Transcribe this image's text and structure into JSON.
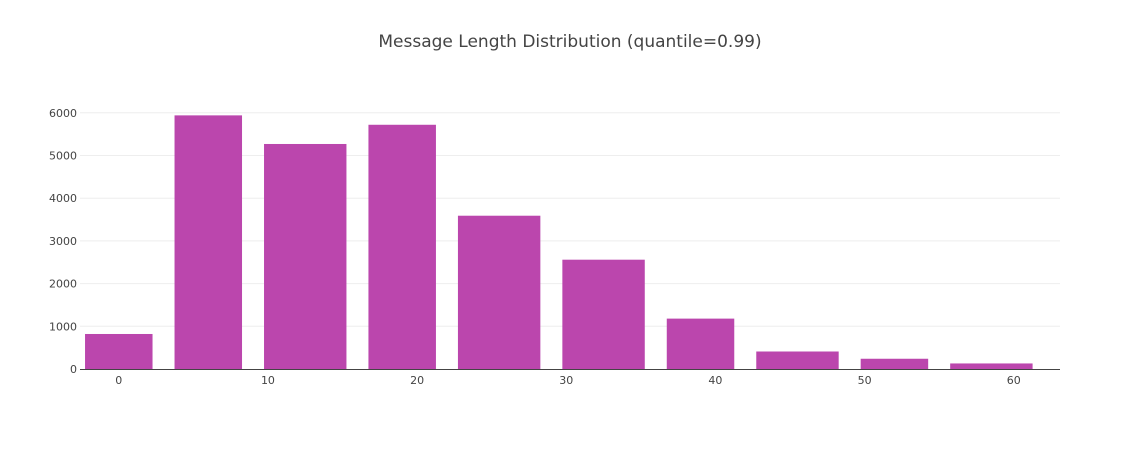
{
  "colors": {
    "bar": "#bb46ad",
    "grid": "#eeeeee",
    "axis": "#444444"
  },
  "chart_data": {
    "type": "bar",
    "title": "Message Length Distribution (quantile=0.99)",
    "xlabel": "",
    "ylabel": "",
    "grid": true,
    "ylim": [
      0,
      6300
    ],
    "xlim": [
      -2.6,
      63.1
    ],
    "yticks": [
      0,
      1000,
      2000,
      3000,
      4000,
      5000,
      6000
    ],
    "xticks": [
      0,
      10,
      20,
      30,
      40,
      50,
      60
    ],
    "bins": [
      {
        "x0": -3,
        "x1": 3,
        "value": 820
      },
      {
        "x0": 3,
        "x1": 9,
        "value": 5940
      },
      {
        "x0": 9,
        "x1": 16,
        "value": 5270
      },
      {
        "x0": 16,
        "x1": 22,
        "value": 5720
      },
      {
        "x0": 22,
        "x1": 29,
        "value": 3590
      },
      {
        "x0": 29,
        "x1": 36,
        "value": 2560
      },
      {
        "x0": 36,
        "x1": 42,
        "value": 1180
      },
      {
        "x0": 42,
        "x1": 49,
        "value": 410
      },
      {
        "x0": 49,
        "x1": 55,
        "value": 240
      },
      {
        "x0": 55,
        "x1": 62,
        "value": 130
      }
    ]
  }
}
